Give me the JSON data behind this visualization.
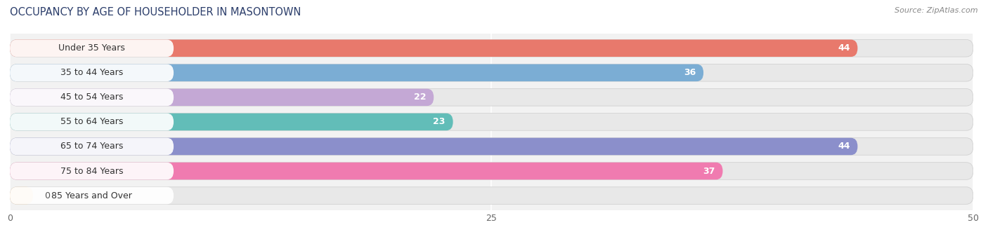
{
  "title": "OCCUPANCY BY AGE OF HOUSEHOLDER IN MASONTOWN",
  "source": "Source: ZipAtlas.com",
  "categories": [
    "Under 35 Years",
    "35 to 44 Years",
    "45 to 54 Years",
    "55 to 64 Years",
    "65 to 74 Years",
    "75 to 84 Years",
    "85 Years and Over"
  ],
  "values": [
    44,
    36,
    22,
    23,
    44,
    37,
    0
  ],
  "bar_colors": [
    "#E8796C",
    "#7BADD4",
    "#C4A8D5",
    "#62BDB8",
    "#8B8FCB",
    "#F07BB0",
    "#F5CFA0"
  ],
  "xlim": [
    0,
    50
  ],
  "xticks": [
    0,
    25,
    50
  ],
  "title_fontsize": 10.5,
  "label_fontsize": 9,
  "value_fontsize": 9,
  "background_color": "#f0f0f0",
  "bar_background_color": "#e0e0e0",
  "label_bg_color": "#ffffff"
}
